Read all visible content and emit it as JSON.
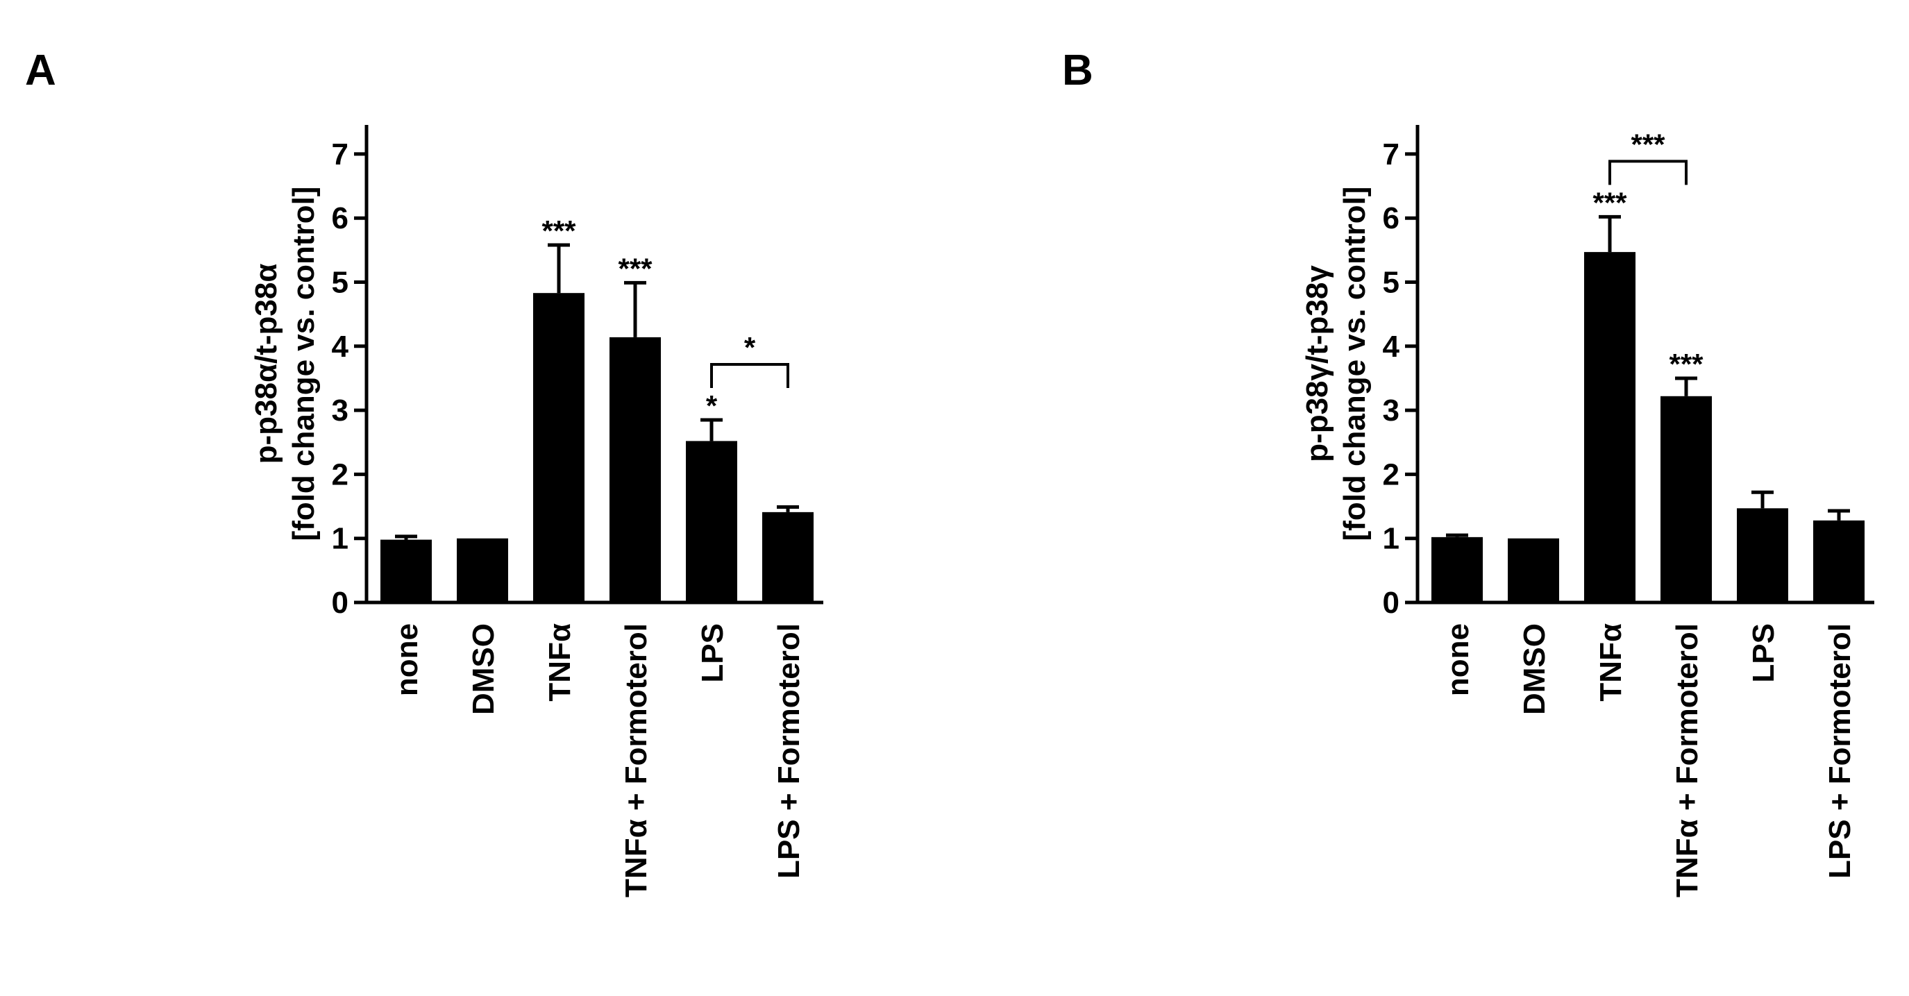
{
  "chart_data": [
    {
      "panel": "A",
      "type": "bar",
      "categories": [
        "none",
        "DMSO",
        "TNFα",
        "TNFα + Formoterol",
        "LPS",
        "LPS + Formoterol"
      ],
      "values": [
        0.98,
        1.0,
        4.83,
        4.14,
        2.52,
        1.41
      ],
      "errors": [
        0.05,
        0.0,
        0.75,
        0.85,
        0.33,
        0.08
      ],
      "ylabel_line1": "p-p38α/t-p38α",
      "ylabel_line2": "[fold change vs. control]",
      "ylim": [
        0,
        7.5
      ],
      "yticks": [
        "0",
        "1",
        "2",
        "3",
        "4",
        "5",
        "6",
        "7"
      ],
      "significance": [
        {
          "bar": 2,
          "label": "***"
        },
        {
          "bar": 3,
          "label": "***"
        },
        {
          "bar": 4,
          "label": "*"
        }
      ],
      "brackets": [
        {
          "from": 4,
          "to": 5,
          "label": "*"
        }
      ],
      "bar_color": "#000000"
    },
    {
      "panel": "B",
      "type": "bar",
      "categories": [
        "none",
        "DMSO",
        "TNFα",
        "TNFα + Formoterol",
        "LPS",
        "LPS + Formoterol"
      ],
      "values": [
        1.02,
        1.0,
        5.47,
        3.22,
        1.47,
        1.28
      ],
      "errors": [
        0.03,
        0.0,
        0.55,
        0.28,
        0.25,
        0.15
      ],
      "ylabel_line1": "p-p38γ/t-p38γ",
      "ylabel_line2": "[fold change vs. control]",
      "ylim": [
        0,
        7.5
      ],
      "yticks": [
        "0",
        "1",
        "2",
        "3",
        "4",
        "5",
        "6",
        "7"
      ],
      "significance": [
        {
          "bar": 2,
          "label": "***"
        },
        {
          "bar": 3,
          "label": "***"
        }
      ],
      "brackets": [
        {
          "from": 2,
          "to": 3,
          "label": "***"
        }
      ],
      "bar_color": "#000000"
    }
  ]
}
